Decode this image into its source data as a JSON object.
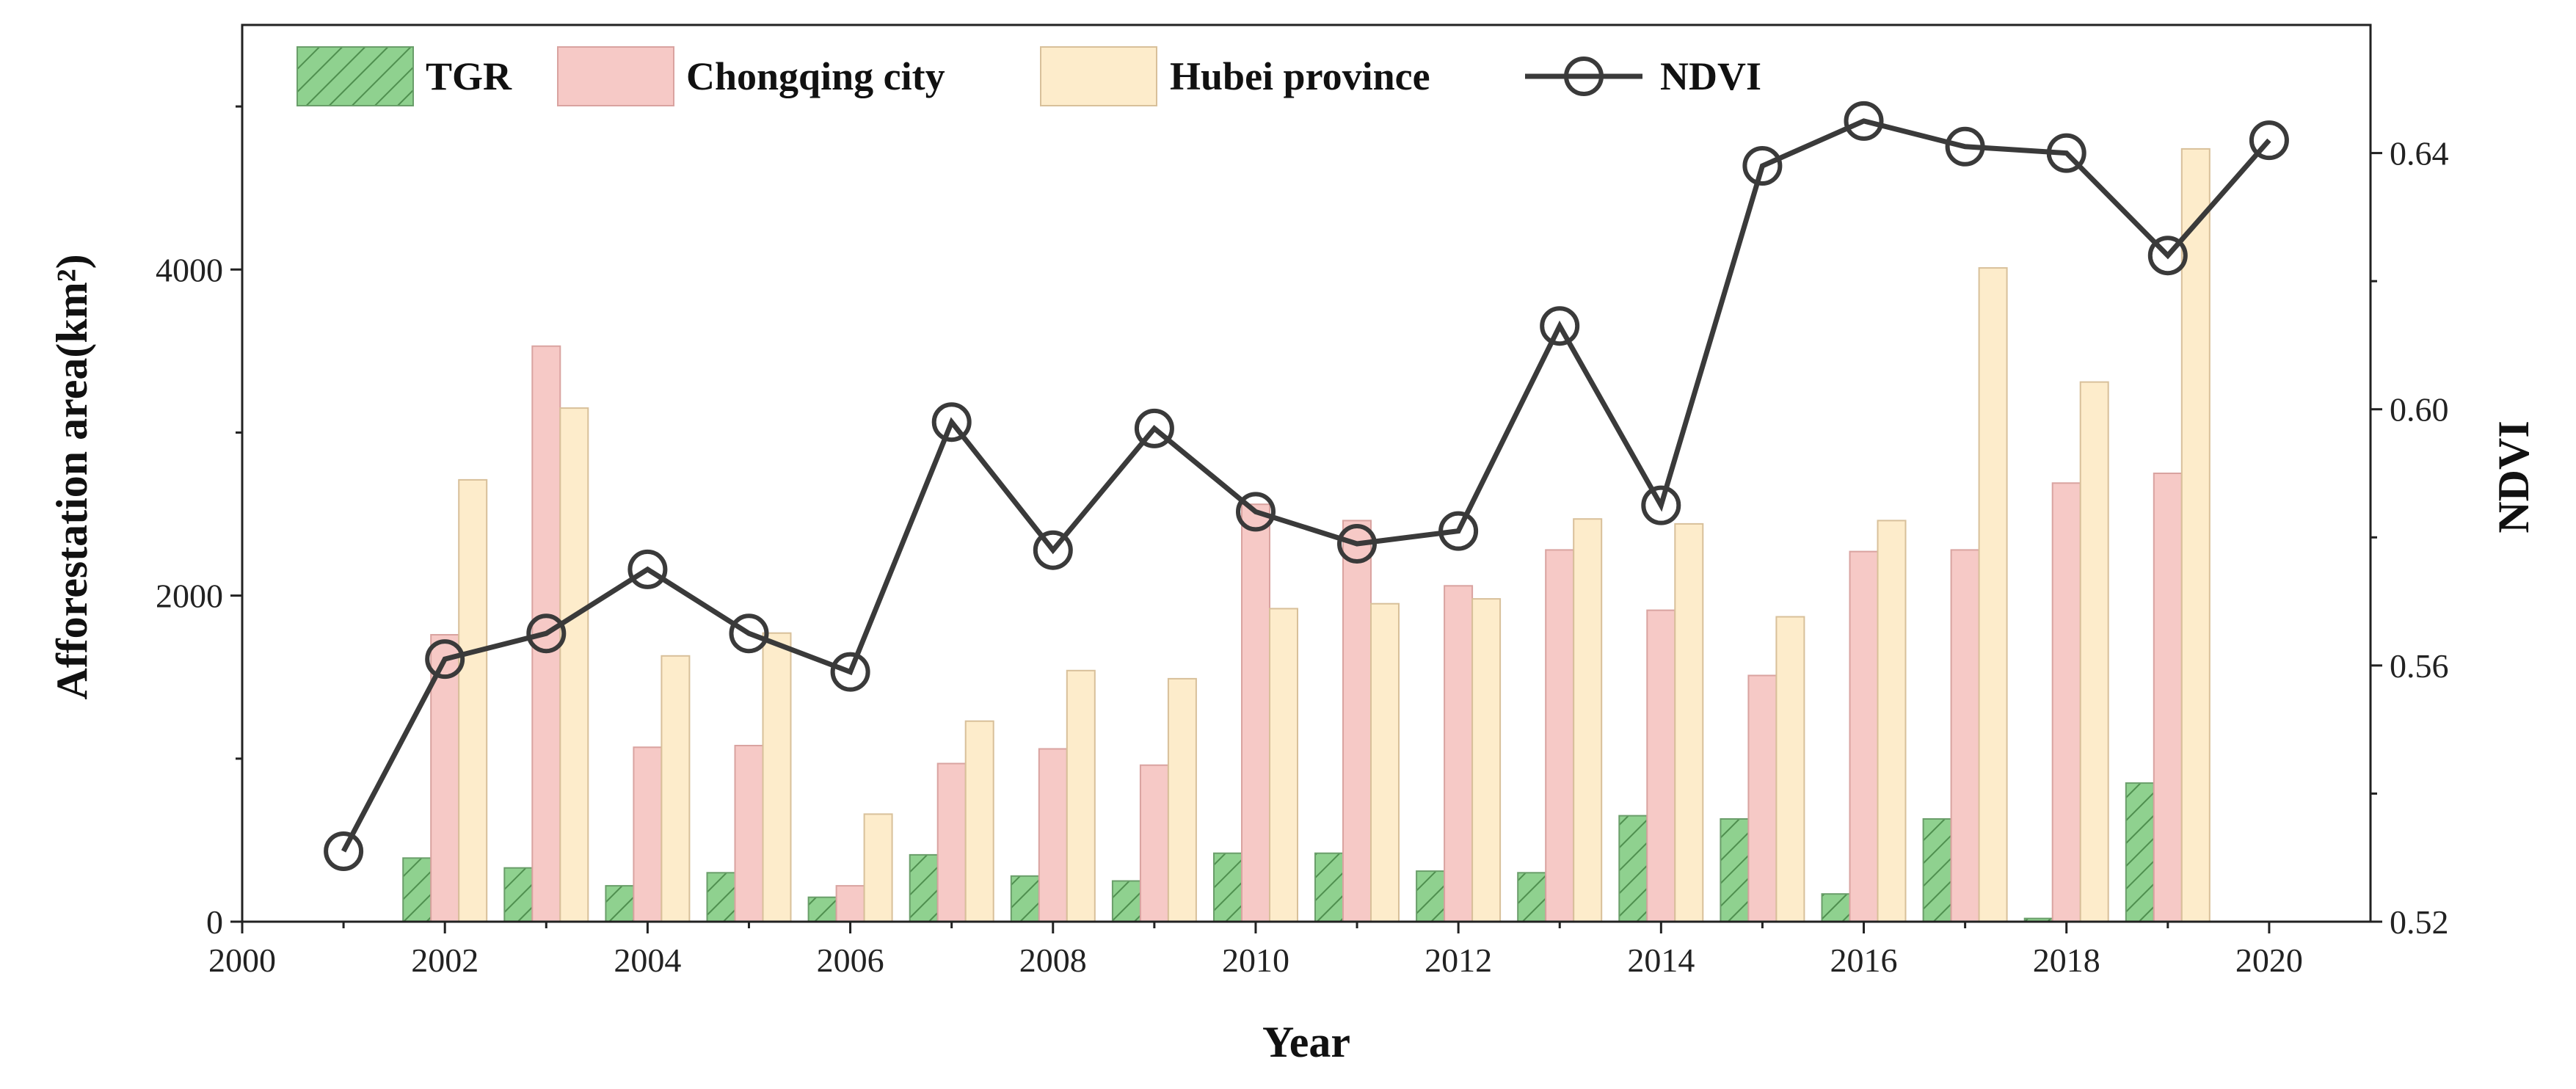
{
  "chart_data": {
    "type": "bar+line",
    "xlabel": "Year",
    "ylabel_left": "Afforestation area(km²)",
    "ylabel_right": "NDVI",
    "x_axis": {
      "range": [
        2000,
        2021
      ],
      "ticks": [
        2000,
        2002,
        2004,
        2006,
        2008,
        2010,
        2012,
        2014,
        2016,
        2018,
        2020
      ]
    },
    "left_axis": {
      "range": [
        0,
        5500
      ],
      "major_ticks": [
        0,
        2000,
        4000
      ],
      "minor_ticks": [
        1000,
        3000,
        5000
      ]
    },
    "right_axis": {
      "range": [
        0.52,
        0.66
      ],
      "ticks": [
        0.52,
        0.56,
        0.6,
        0.64
      ],
      "tick_labels": [
        "0.52",
        "0.56",
        "0.60",
        "0.64"
      ]
    },
    "legend": [
      "TGR",
      "Chongqing city",
      "Hubei province",
      "NDVI"
    ],
    "legend_position": "top-left",
    "bar_years": [
      2002,
      2003,
      2004,
      2005,
      2006,
      2007,
      2008,
      2009,
      2010,
      2011,
      2012,
      2013,
      2014,
      2015,
      2016,
      2017,
      2018,
      2019
    ],
    "series": [
      {
        "name": "TGR",
        "type": "bar",
        "color": "#8fd18f",
        "values": [
          390,
          330,
          220,
          300,
          150,
          410,
          280,
          250,
          420,
          420,
          310,
          300,
          650,
          630,
          170,
          630,
          20,
          850
        ]
      },
      {
        "name": "Chongqing city",
        "type": "bar",
        "color": "#f6c9c6",
        "values": [
          1760,
          3530,
          1070,
          1080,
          220,
          970,
          1060,
          960,
          2560,
          2460,
          2060,
          2280,
          1910,
          1510,
          2270,
          2280,
          2690,
          2750
        ]
      },
      {
        "name": "Hubei province",
        "type": "bar",
        "color": "#fdeccb",
        "values": [
          2710,
          3150,
          1630,
          1770,
          660,
          1230,
          1540,
          1490,
          1920,
          1950,
          1980,
          2470,
          2440,
          1870,
          2460,
          4010,
          3310,
          4740
        ]
      },
      {
        "name": "NDVI",
        "type": "line",
        "axis": "right",
        "color": "#3a3a3a",
        "x": [
          2001,
          2002,
          2003,
          2004,
          2005,
          2006,
          2007,
          2008,
          2009,
          2010,
          2011,
          2012,
          2013,
          2014,
          2015,
          2016,
          2017,
          2018,
          2019,
          2020
        ],
        "values": [
          0.531,
          0.561,
          0.565,
          0.575,
          0.565,
          0.559,
          0.598,
          0.578,
          0.597,
          0.584,
          0.579,
          0.581,
          0.613,
          0.585,
          0.638,
          0.645,
          0.641,
          0.64,
          0.624,
          0.642
        ]
      }
    ]
  }
}
